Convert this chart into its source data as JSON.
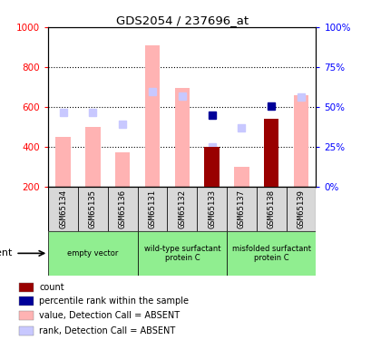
{
  "title": "GDS2054 / 237696_at",
  "samples": [
    "GSM65134",
    "GSM65135",
    "GSM65136",
    "GSM65131",
    "GSM65132",
    "GSM65133",
    "GSM65137",
    "GSM65138",
    "GSM65139"
  ],
  "bar_values_absent": [
    450,
    500,
    375,
    910,
    695,
    200,
    300,
    200,
    660
  ],
  "rank_values_absent": [
    575,
    575,
    515,
    680,
    655,
    400,
    495,
    200,
    650
  ],
  "count_values": [
    null,
    null,
    null,
    null,
    null,
    400,
    null,
    540,
    null
  ],
  "rank_present": [
    null,
    null,
    null,
    null,
    null,
    560,
    null,
    605,
    null
  ],
  "ylim_left": [
    200,
    1000
  ],
  "ylim_right": [
    0,
    100
  ],
  "yticks_left": [
    200,
    400,
    600,
    800,
    1000
  ],
  "yticks_right": [
    0,
    25,
    50,
    75,
    100
  ],
  "grid_values": [
    400,
    600,
    800
  ],
  "bar_color_absent": "#ffb3b3",
  "rank_color_absent": "#c8c8ff",
  "count_color": "#990000",
  "rank_color_present": "#000099",
  "group_ranges": [
    [
      0,
      2,
      "empty vector"
    ],
    [
      3,
      5,
      "wild-type surfactant\nprotein C"
    ],
    [
      6,
      8,
      "misfolded surfactant\nprotein C"
    ]
  ],
  "group_bg": "#90ee90",
  "sample_bg": "#d8d8d8",
  "legend_items": [
    {
      "color": "#990000",
      "label": "count"
    },
    {
      "color": "#000099",
      "label": "percentile rank within the sample"
    },
    {
      "color": "#ffb3b3",
      "label": "value, Detection Call = ABSENT"
    },
    {
      "color": "#c8c8ff",
      "label": "rank, Detection Call = ABSENT"
    }
  ]
}
